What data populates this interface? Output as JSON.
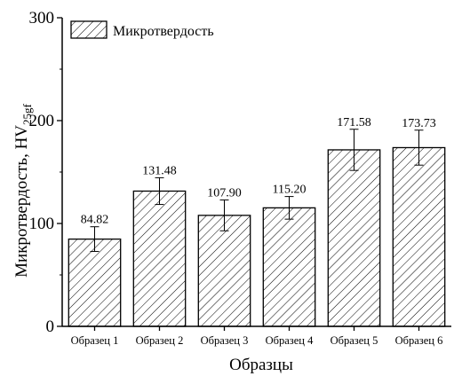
{
  "chart_data": {
    "type": "bar",
    "title": "",
    "xlabel": "Образцы",
    "ylabel": "Микротвердость, HV",
    "ylabel_sub": "25gf",
    "ylim": [
      0,
      300
    ],
    "yticks": [
      "0",
      "100",
      "200",
      "300"
    ],
    "categories": [
      "Образец 1",
      "Образец 2",
      "Образец 3",
      "Образец 4",
      "Образец 5",
      "Образец 6"
    ],
    "series": [
      {
        "name": "Микротвердость",
        "values": [
          84.82,
          131.48,
          107.9,
          115.2,
          171.58,
          173.73
        ],
        "labels": [
          "84.82",
          "131.48",
          "107.90",
          "115.20",
          "171.58",
          "173.73"
        ],
        "errors": [
          12,
          13,
          15,
          11,
          20,
          17
        ]
      }
    ],
    "bar_fill": "hatched",
    "legend_position": "top-left",
    "grid": false
  }
}
